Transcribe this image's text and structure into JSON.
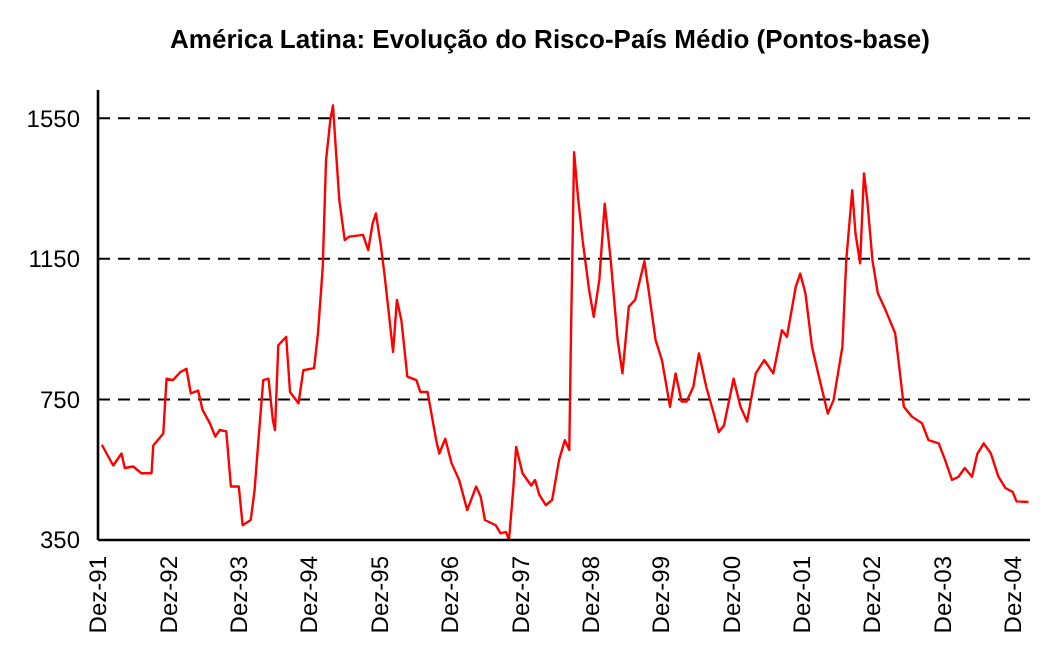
{
  "chart_data": {
    "type": "line",
    "title": "América Latina: Evolução do Risco-País Médio (Pontos-base)",
    "x": [
      "1991-12-21",
      "1992-02-18",
      "1992-04-01",
      "1992-04-18",
      "1992-06-01",
      "1992-07-13",
      "1992-09-04",
      "1992-09-13",
      "1992-11-04",
      "1992-11-21",
      "1992-12-24",
      "1993-02-01",
      "1993-03-04",
      "1993-03-27",
      "1993-05-04",
      "1993-05-27",
      "1993-07-04",
      "1993-08-01",
      "1993-08-24",
      "1993-09-27",
      "1993-10-21",
      "1993-12-01",
      "1993-12-21",
      "1994-02-01",
      "1994-02-21",
      "1994-03-13",
      "1994-04-07",
      "1994-05-04",
      "1994-05-27",
      "1994-06-07",
      "1994-06-24",
      "1994-08-04",
      "1994-08-24",
      "1994-10-07",
      "1994-11-01",
      "1994-12-27",
      "1995-01-16",
      "1995-02-10",
      "1995-02-27",
      "1995-03-21",
      "1995-04-04",
      "1995-04-18",
      "1995-05-07",
      "1995-06-04",
      "1995-06-27",
      "1995-09-07",
      "1995-10-04",
      "1995-10-27",
      "1995-11-13",
      "1995-12-07",
      "1995-12-27",
      "1996-01-21",
      "1996-02-10",
      "1996-03-01",
      "1996-03-24",
      "1996-04-24",
      "1996-06-10",
      "1996-07-01",
      "1996-08-07",
      "1996-09-21",
      "1996-10-07",
      "1996-11-07",
      "1996-12-10",
      "1997-01-18",
      "1997-03-01",
      "1997-04-16",
      "1997-05-10",
      "1997-06-01",
      "1997-07-27",
      "1997-08-21",
      "1997-09-18",
      "1997-10-04",
      "1997-10-27",
      "1997-11-10",
      "1997-12-13",
      "1998-01-27",
      "1998-02-16",
      "1998-03-10",
      "1998-04-13",
      "1998-05-16",
      "1998-06-21",
      "1998-07-21",
      "1998-08-13",
      "1998-08-21",
      "1998-09-07",
      "1998-09-27",
      "1998-10-21",
      "1998-11-24",
      "1998-12-18",
      "1999-01-16",
      "1999-02-13",
      "1999-03-16",
      "1999-04-21",
      "1999-05-16",
      "1999-06-18",
      "1999-07-21",
      "1999-09-07",
      "1999-10-01",
      "1999-11-04",
      "1999-12-07",
      "2000-01-18",
      "2000-02-16",
      "2000-03-18",
      "2000-04-13",
      "2000-05-18",
      "2000-06-16",
      "2000-07-24",
      "2000-09-01",
      "2000-09-27",
      "2000-10-24",
      "2000-12-13",
      "2001-01-18",
      "2001-02-21",
      "2001-04-07",
      "2001-05-21",
      "2001-07-07",
      "2001-08-21",
      "2001-09-16",
      "2001-11-01",
      "2001-11-24",
      "2001-12-21",
      "2002-01-24",
      "2002-03-01",
      "2002-04-16",
      "2002-05-16",
      "2002-07-01",
      "2002-07-21",
      "2002-08-21",
      "2002-09-07",
      "2002-10-01",
      "2002-10-21",
      "2002-11-07",
      "2002-12-04",
      "2003-01-01",
      "2003-02-10",
      "2003-04-01",
      "2003-04-18",
      "2003-05-16",
      "2003-06-27",
      "2003-08-18",
      "2003-09-21",
      "2003-11-13",
      "2003-12-16",
      "2004-01-21",
      "2004-02-24",
      "2004-03-27",
      "2004-05-04",
      "2004-06-01",
      "2004-07-04",
      "2004-08-10",
      "2004-09-18",
      "2004-10-24",
      "2004-12-01",
      "2004-12-21",
      "2005-02-21"
    ],
    "series": [
      {
        "color": "#ff0000",
        "values": [
          621,
          562,
          596,
          555,
          559,
          540,
          540,
          619,
          653,
          809,
          805,
          828,
          837,
          767,
          775,
          720,
          682,
          644,
          663,
          659,
          502,
          502,
          392,
          407,
          492,
          634,
          805,
          809,
          691,
          663,
          904,
          928,
          771,
          739,
          833,
          839,
          938,
          1127,
          1431,
          1544,
          1586,
          1469,
          1317,
          1203,
          1213,
          1218,
          1175,
          1251,
          1279,
          1194,
          1108,
          985,
          885,
          1033,
          976,
          815,
          805,
          771,
          771,
          634,
          596,
          638,
          568,
          521,
          435,
          502,
          473,
          407,
          392,
          369,
          373,
          350,
          502,
          615,
          540,
          505,
          521,
          479,
          449,
          464,
          578,
          634,
          606,
          909,
          1453,
          1326,
          1203,
          1061,
          985,
          1090,
          1307,
          1146,
          919,
          824,
          1014,
          1033,
          1143,
          1052,
          919,
          862,
          729,
          824,
          744,
          744,
          786,
          881,
          786,
          710,
          657,
          676,
          809,
          729,
          687,
          824,
          862,
          824,
          947,
          928,
          1071,
          1108,
          1052,
          900,
          815,
          710,
          748,
          900,
          1146,
          1345,
          1222,
          1137,
          1393,
          1317,
          1146,
          1052,
          1004,
          938,
          862,
          729,
          701,
          682,
          634,
          625,
          578,
          521,
          530,
          555,
          530,
          596,
          625,
          596,
          530,
          498,
          487,
          460,
          458
        ]
      }
    ],
    "xlim": [
      "1991-12-01",
      "2005-03-01"
    ],
    "xticks": [
      {
        "value": "1991-12-01",
        "label": "Dez-91"
      },
      {
        "value": "1992-12-01",
        "label": "Dez-92"
      },
      {
        "value": "1993-12-01",
        "label": "Dez-93"
      },
      {
        "value": "1994-12-01",
        "label": "Dez-94"
      },
      {
        "value": "1995-12-01",
        "label": "Dez-95"
      },
      {
        "value": "1996-12-01",
        "label": "Dez-96"
      },
      {
        "value": "1997-12-01",
        "label": "Dez-97"
      },
      {
        "value": "1998-12-01",
        "label": "Dez-98"
      },
      {
        "value": "1999-12-01",
        "label": "Dez-99"
      },
      {
        "value": "2000-12-01",
        "label": "Dez-00"
      },
      {
        "value": "2001-12-01",
        "label": "Dez-01"
      },
      {
        "value": "2002-12-01",
        "label": "Dez-02"
      },
      {
        "value": "2003-12-01",
        "label": "Dez-03"
      },
      {
        "value": "2004-12-01",
        "label": "Dez-04"
      }
    ],
    "ylim": [
      350,
      1630
    ],
    "yticks": [
      350,
      750,
      1150,
      1550
    ],
    "grid": "y",
    "line_style": "solid",
    "marker": "none"
  }
}
